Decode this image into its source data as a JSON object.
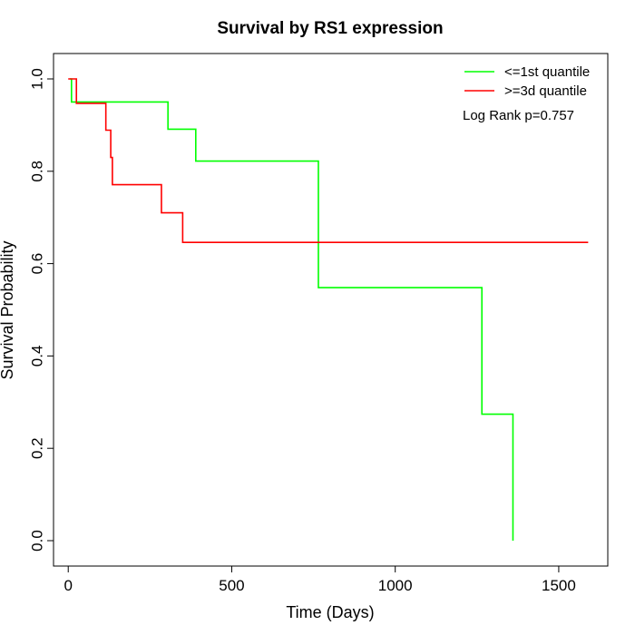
{
  "chart_data": {
    "type": "line",
    "title": "Survival by RS1 expression",
    "xlabel": "Time (Days)",
    "ylabel": "Survival Probability",
    "xlim": [
      -45,
      1650
    ],
    "ylim": [
      -0.055,
      1.055
    ],
    "xticks": [
      0,
      500,
      1000,
      1500
    ],
    "yticks": [
      0.0,
      0.2,
      0.4,
      0.6,
      0.8,
      1.0
    ],
    "xtick_labels": [
      "0",
      "500",
      "1000",
      "1500"
    ],
    "ytick_labels": [
      "0.0",
      "0.2",
      "0.4",
      "0.6",
      "0.8",
      "1.0"
    ],
    "grid": false,
    "legend_position": "top-right",
    "annotation": "Log Rank p=0.757",
    "series": [
      {
        "name": "<=1st quantile",
        "color": "#00ff00",
        "step": true,
        "x": [
          5,
          10,
          305,
          390,
          765,
          1265,
          1360
        ],
        "y": [
          1.0,
          0.95,
          0.891,
          0.822,
          0.548,
          0.274,
          0.0
        ],
        "end_x": 1360
      },
      {
        "name": ">=3d quantile",
        "color": "#ff0000",
        "step": true,
        "x": [
          0,
          25,
          115,
          130,
          135,
          285,
          350
        ],
        "y": [
          1.0,
          0.947,
          0.889,
          0.83,
          0.771,
          0.71,
          0.646
        ],
        "end_x": 1590
      }
    ]
  }
}
